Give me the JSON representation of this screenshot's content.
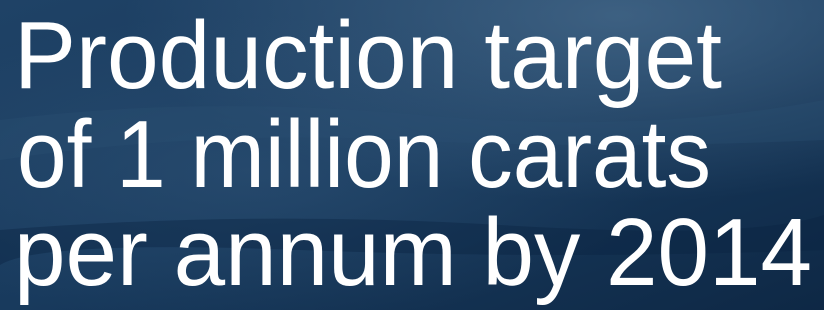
{
  "headline": {
    "lines": [
      "Production target",
      "of 1 million carats",
      "per annum by 2014"
    ]
  }
}
